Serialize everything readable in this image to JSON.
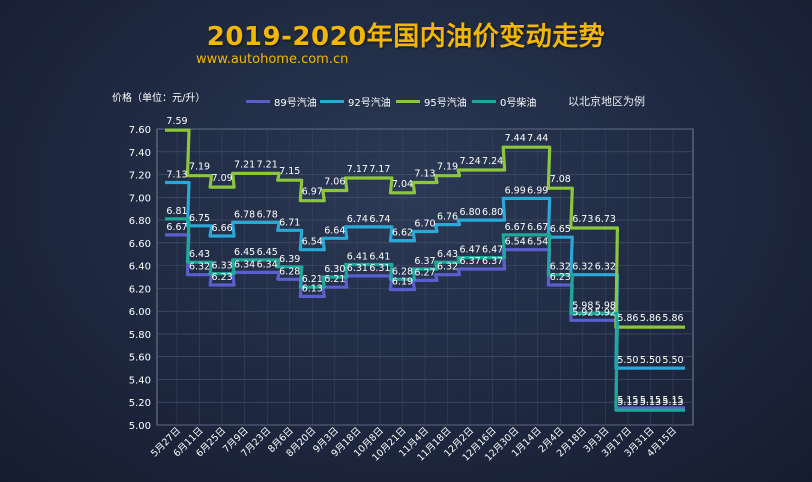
{
  "title": "2019-2020年国内油价变动走势",
  "site": "www.autohome.com.cn",
  "y_unit_label": "价格（单位：元/升）",
  "note": "以北京地区为例",
  "chart_data": {
    "type": "line",
    "step": true,
    "categories": [
      "5月27日",
      "6月11日",
      "6月25日",
      "7月9日",
      "7月23日",
      "8月6日",
      "8月20日",
      "9月3日",
      "9月18日",
      "10月8日",
      "10月21日",
      "11月4日",
      "11月18日",
      "12月2日",
      "12月16日",
      "12月30日",
      "1月14日",
      "2月4日",
      "2月18日",
      "3月3日",
      "3月17日",
      "3月31日",
      "4月15日"
    ],
    "ylim": [
      5.0,
      7.6
    ],
    "yticks": [
      "5.00",
      "5.20",
      "5.40",
      "5.60",
      "5.80",
      "6.00",
      "6.20",
      "6.40",
      "6.60",
      "6.80",
      "7.00",
      "7.20",
      "7.40",
      "7.60"
    ],
    "grid": true,
    "legend_position": "top",
    "series": [
      {
        "name": "89号汽油",
        "color": "#5a5fcf",
        "values": [
          6.67,
          6.32,
          6.23,
          6.34,
          6.34,
          6.28,
          6.13,
          6.21,
          6.31,
          6.31,
          6.19,
          6.27,
          6.32,
          6.37,
          6.37,
          6.54,
          6.54,
          6.23,
          5.92,
          5.92,
          5.15,
          5.15,
          5.15
        ]
      },
      {
        "name": "92号汽油",
        "color": "#2aa8d8",
        "values": [
          7.13,
          6.75,
          6.66,
          6.78,
          6.78,
          6.71,
          6.54,
          6.64,
          6.74,
          6.74,
          6.62,
          6.7,
          6.76,
          6.8,
          6.8,
          6.99,
          6.99,
          6.65,
          6.32,
          6.32,
          5.5,
          5.5,
          5.5
        ]
      },
      {
        "name": "95号汽油",
        "color": "#8cc63e",
        "values": [
          7.59,
          7.19,
          7.09,
          7.21,
          7.21,
          7.15,
          6.97,
          7.06,
          7.17,
          7.17,
          7.04,
          7.13,
          7.19,
          7.24,
          7.24,
          7.44,
          7.44,
          7.08,
          6.73,
          6.73,
          5.86,
          5.86,
          5.86
        ]
      },
      {
        "name": "0号柴油",
        "color": "#1fa79a",
        "values": [
          6.81,
          6.43,
          6.33,
          6.45,
          6.45,
          6.39,
          6.21,
          6.3,
          6.41,
          6.41,
          6.28,
          6.37,
          6.43,
          6.47,
          6.47,
          6.67,
          6.67,
          6.32,
          5.98,
          5.98,
          5.13,
          5.13,
          5.13
        ]
      }
    ],
    "data_labels": {
      "89号汽油": [
        "6.67",
        "6.32",
        "6.23",
        "6.34",
        "6.34",
        "6.28",
        "6.13",
        "6.21",
        "6.31",
        "6.31",
        "6.19",
        "6.27",
        "6.32",
        "6.37",
        "6.37",
        "6.54",
        "6.54",
        "6.23",
        "5.92",
        "5.92",
        "5.15",
        "5.15",
        "5.15"
      ],
      "92号汽油": [
        "7.13",
        "6.75",
        "6.66",
        "6.78",
        "6.78",
        "6.71",
        "6.54",
        "6.64",
        "6.74",
        "6.74",
        "6.62",
        "6.70",
        "6.76",
        "6.80",
        "6.80",
        "6.99",
        "6.99",
        "6.65",
        "6.32",
        "6.32",
        "5.50",
        "5.50",
        "5.50"
      ],
      "95号汽油": [
        "7.59",
        "7.19",
        "7.09",
        "7.21",
        "7.21",
        "7.15",
        "6.97",
        "7.06",
        "7.17",
        "7.17",
        "7.04",
        "7.13",
        "7.19",
        "7.24",
        "7.24",
        "7.44",
        "7.44",
        "7.08",
        "6.73",
        "6.73",
        "5.86",
        "5.86",
        "5.86"
      ],
      "0号柴油": [
        "6.81",
        "6.43",
        "6.33",
        "6.45",
        "6.45",
        "6.39",
        "6.21",
        "6.30",
        "6.41",
        "6.41",
        "6.28",
        "6.37",
        "6.43",
        "6.47",
        "6.47",
        "6.67",
        "6.67",
        "6.32",
        "5.98",
        "5.98",
        "5.13",
        "5.13",
        "5.13"
      ]
    }
  }
}
